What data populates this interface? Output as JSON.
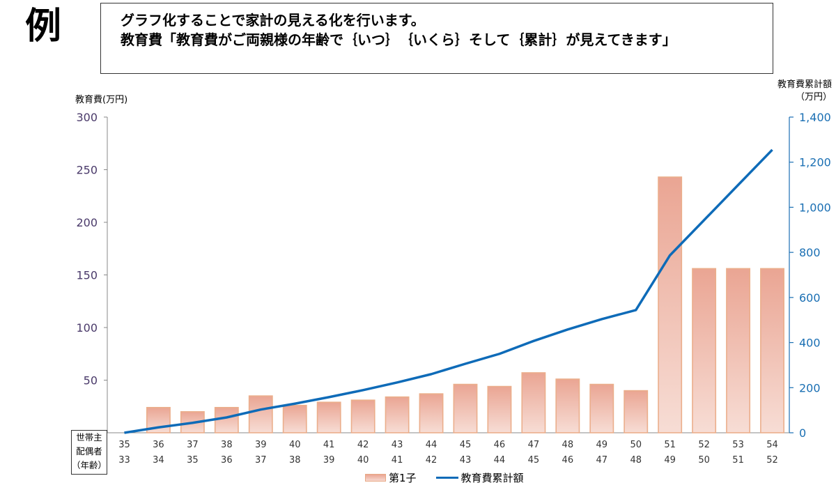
{
  "page": {
    "example_mark": "例",
    "header_line1": "グラフ化することで家計の見える化を行います。",
    "header_line2": "教育費「教育費がご両親様の年齢で｛いつ｝　｛いくら｝そして｛累計｝が見えてきます」",
    "household_label": [
      "世帯主",
      "配偶者",
      "（年齢）"
    ]
  },
  "chart_data": {
    "type": "bar",
    "ylabel": "教育費(万円)",
    "y2label_line1": "教育費累計額",
    "y2label_line2": "（万円）",
    "ylim": [
      0,
      300
    ],
    "y2lim": [
      0,
      1400
    ],
    "yticks": [
      "50",
      "100",
      "150",
      "200",
      "250",
      "300"
    ],
    "y2ticks": [
      "0",
      "200",
      "400",
      "600",
      "800",
      "1,000",
      "1,200",
      "1,400"
    ],
    "categories_head": [
      "35",
      "36",
      "37",
      "38",
      "39",
      "40",
      "41",
      "42",
      "43",
      "44",
      "45",
      "46",
      "47",
      "48",
      "49",
      "50",
      "51",
      "52",
      "53",
      "54"
    ],
    "categories_spouse": [
      "33",
      "34",
      "35",
      "36",
      "37",
      "38",
      "39",
      "40",
      "41",
      "42",
      "43",
      "44",
      "45",
      "46",
      "47",
      "48",
      "49",
      "50",
      "51",
      "52"
    ],
    "series": [
      {
        "name": "第1子",
        "kind": "bar",
        "axis": "left",
        "values": [
          0,
          24,
          20,
          24,
          35,
          26,
          29,
          31,
          34,
          37,
          46,
          44,
          57,
          51,
          46,
          40,
          243,
          156,
          156,
          156
        ]
      },
      {
        "name": "教育費累計額",
        "kind": "line",
        "axis": "right",
        "values": [
          0,
          24,
          44,
          68,
          103,
          129,
          158,
          189,
          223,
          260,
          306,
          350,
          407,
          458,
          504,
          544,
          787,
          943,
          1099,
          1255
        ]
      }
    ],
    "colors": {
      "bar_top": "#eaa593",
      "bar_bottom": "#f7ddd5",
      "bar_border": "#ebae8b",
      "line": "#0e6bb8",
      "left_tick": "#4a3a6a",
      "right_tick": "#1a6fb3"
    },
    "legend_position": "bottom",
    "grid": false
  }
}
